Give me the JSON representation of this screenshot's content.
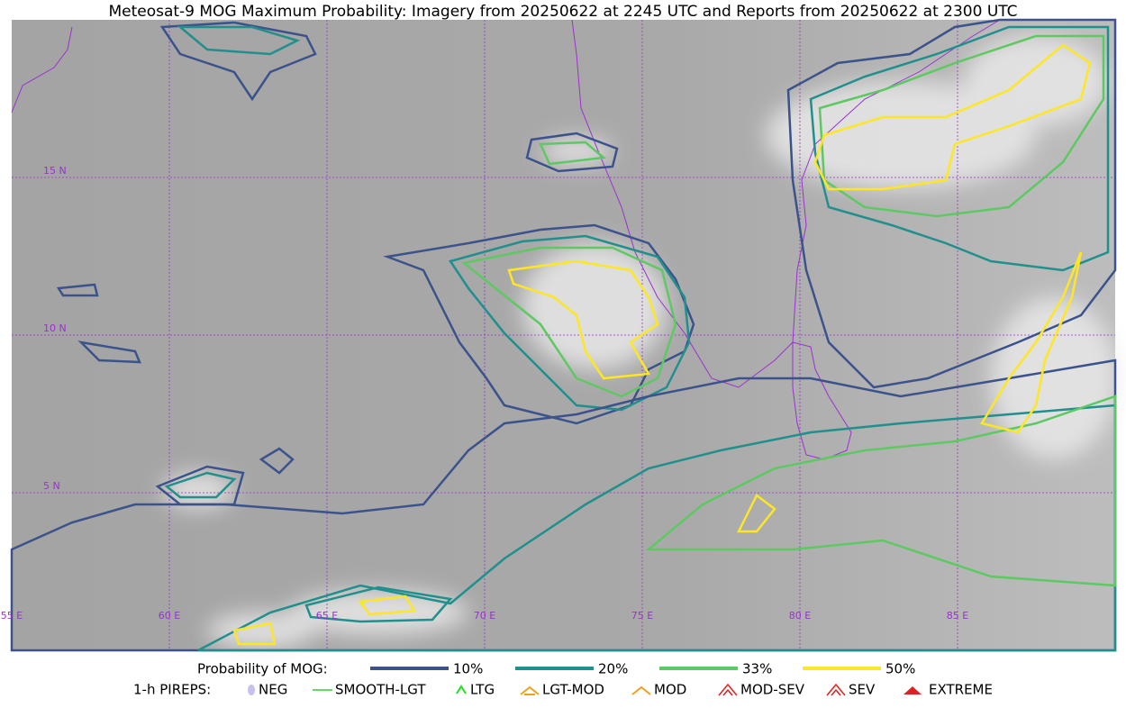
{
  "title": "Meteosat-9 MOG Maximum Probability: Imagery from 20250622 at 2245 UTC and Reports from 20250622 at 2300 UTC",
  "map": {
    "lat_labels": [
      "15 N",
      "10 N",
      "5 N"
    ],
    "lon_labels": [
      "55 E",
      "60 E",
      "65 E",
      "70 E",
      "75 E",
      "80 E",
      "85 E"
    ]
  },
  "legend": {
    "probability": {
      "label": "Probability of MOG:",
      "items": [
        {
          "label": "10%",
          "color": "#3b528b"
        },
        {
          "label": "20%",
          "color": "#21908d"
        },
        {
          "label": "33%",
          "color": "#5ec962"
        },
        {
          "label": "50%",
          "color": "#fde725"
        }
      ]
    },
    "pireps": {
      "label": "1-h PIREPS:",
      "items": [
        {
          "label": "NEG",
          "color": "#c8c0f0"
        },
        {
          "label": "SMOOTH-LGT",
          "color": "#33cc33"
        },
        {
          "label": "LTG",
          "color": "#22dd22"
        },
        {
          "label": "LGT-MOD",
          "color": "#f0a020"
        },
        {
          "label": "MOD",
          "color": "#f0a020"
        },
        {
          "label": "MOD-SEV",
          "color": "#e02020"
        },
        {
          "label": "SEV",
          "color": "#e02020"
        },
        {
          "label": "EXTREME",
          "color": "#e02020"
        }
      ]
    }
  }
}
